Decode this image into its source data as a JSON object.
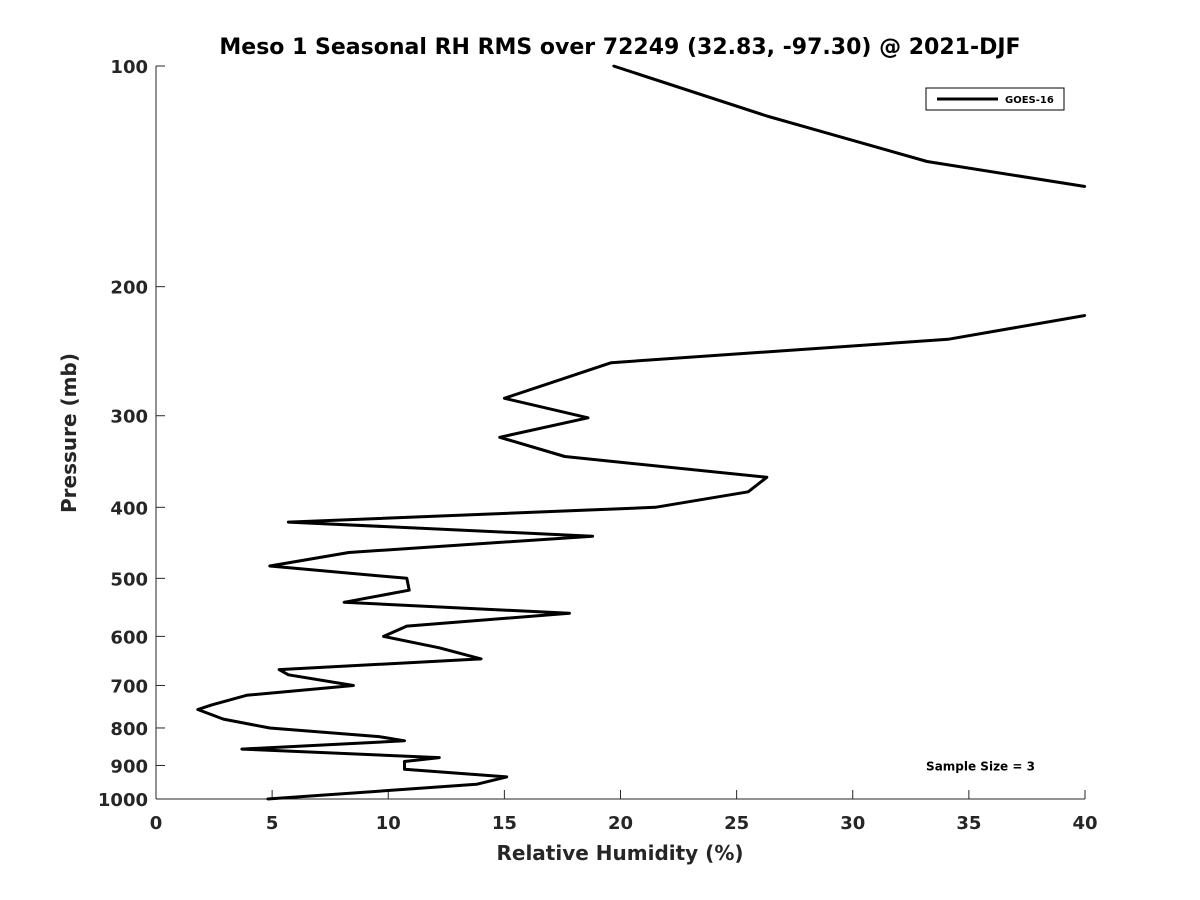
{
  "chart_data": {
    "type": "line",
    "title": "Meso 1 Seasonal RH RMS over 72249 (32.83, -97.30) @ 2021-DJF",
    "xlabel": "Relative Humidity (%)",
    "ylabel": "Pressure (mb)",
    "xlim": [
      0,
      40
    ],
    "ylim": [
      100,
      1000
    ],
    "yscale": "log",
    "y_reversed": true,
    "grid": false,
    "legend_position": "top-right",
    "x_ticks": [
      "0",
      "5",
      "10",
      "15",
      "20",
      "25",
      "30",
      "35",
      "40"
    ],
    "y_ticks": [
      "100",
      "200",
      "300",
      "400",
      "500",
      "600",
      "700",
      "800",
      "900",
      "1000"
    ],
    "series": [
      {
        "name": "GOES-16",
        "color": "#000000",
        "segments": [
          [
            {
              "x": 19.7,
              "y": 100
            },
            {
              "x": 26.3,
              "y": 117
            },
            {
              "x": 33.2,
              "y": 135
            },
            {
              "x": 40.0,
              "y": 146
            }
          ],
          [
            {
              "x": 40.0,
              "y": 219
            },
            {
              "x": 34.1,
              "y": 236
            },
            {
              "x": 19.6,
              "y": 254
            },
            {
              "x": 15.0,
              "y": 284
            },
            {
              "x": 18.6,
              "y": 302
            },
            {
              "x": 14.8,
              "y": 321
            },
            {
              "x": 17.6,
              "y": 341
            },
            {
              "x": 26.3,
              "y": 364
            },
            {
              "x": 25.5,
              "y": 381
            },
            {
              "x": 21.5,
              "y": 400
            },
            {
              "x": 5.7,
              "y": 419
            },
            {
              "x": 18.8,
              "y": 438
            },
            {
              "x": 8.3,
              "y": 461
            },
            {
              "x": 4.9,
              "y": 481
            },
            {
              "x": 10.8,
              "y": 500
            },
            {
              "x": 10.9,
              "y": 519
            },
            {
              "x": 8.1,
              "y": 539
            },
            {
              "x": 17.8,
              "y": 558
            },
            {
              "x": 10.8,
              "y": 581
            },
            {
              "x": 9.8,
              "y": 600
            },
            {
              "x": 12.2,
              "y": 622
            },
            {
              "x": 14.0,
              "y": 644
            },
            {
              "x": 5.3,
              "y": 666
            },
            {
              "x": 5.7,
              "y": 677
            },
            {
              "x": 8.5,
              "y": 700
            },
            {
              "x": 3.9,
              "y": 722
            },
            {
              "x": 2.4,
              "y": 744
            },
            {
              "x": 1.8,
              "y": 755
            },
            {
              "x": 2.9,
              "y": 778
            },
            {
              "x": 4.9,
              "y": 800
            },
            {
              "x": 9.6,
              "y": 822
            },
            {
              "x": 10.7,
              "y": 833
            },
            {
              "x": 3.7,
              "y": 855
            },
            {
              "x": 12.2,
              "y": 878
            },
            {
              "x": 10.7,
              "y": 889
            },
            {
              "x": 10.7,
              "y": 911
            },
            {
              "x": 15.1,
              "y": 933
            },
            {
              "x": 13.8,
              "y": 955
            },
            {
              "x": 4.8,
              "y": 1000
            }
          ]
        ]
      }
    ],
    "annotations": [
      {
        "text": "Sample Size = 3",
        "x": 35.5,
        "y": 900
      }
    ]
  }
}
